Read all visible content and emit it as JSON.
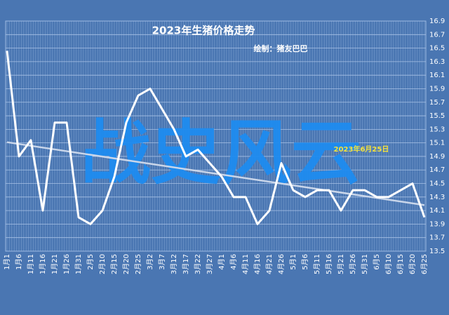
{
  "chart_data": {
    "type": "line",
    "title": "2023年生猪价格走势",
    "subtitle": "绘制：猪友巴巴",
    "watermark": "战史风云",
    "annotation": "2023年6月25日",
    "categories": [
      "1月1",
      "1月6",
      "1月11",
      "1月16",
      "1月21",
      "1月26",
      "1月31",
      "2月5",
      "2月10",
      "2月15",
      "2月20",
      "2月25",
      "3月2",
      "3月7",
      "3月12",
      "3月17",
      "3月22",
      "3月27",
      "4月1",
      "4月6",
      "4月11",
      "4月16",
      "4月21",
      "4月26",
      "5月1",
      "5月6",
      "5月11",
      "5月16",
      "5月21",
      "5月26",
      "5月31",
      "6月5",
      "6月10",
      "6月15",
      "6月20",
      "6月25"
    ],
    "values": [
      16.46,
      14.9,
      15.14,
      14.1,
      15.4,
      15.4,
      14.0,
      13.9,
      14.1,
      14.6,
      15.4,
      15.8,
      15.9,
      15.6,
      15.3,
      14.9,
      15.0,
      14.8,
      14.6,
      14.3,
      14.3,
      13.9,
      14.1,
      14.8,
      14.4,
      14.3,
      14.4,
      14.4,
      14.1,
      14.4,
      14.4,
      14.3,
      14.3,
      14.4,
      14.5,
      14.0
    ],
    "color": "#ffffff",
    "trend": [
      15.11,
      14.18
    ],
    "trend_color": "#c9d6ea",
    "ylim": [
      13.5,
      16.9
    ],
    "yticks": [
      13.5,
      13.7,
      13.9,
      14.1,
      14.3,
      14.5,
      14.7,
      14.9,
      15.1,
      15.3,
      15.5,
      15.7,
      15.9,
      16.1,
      16.3,
      16.5,
      16.7,
      16.9
    ],
    "grid": true
  }
}
